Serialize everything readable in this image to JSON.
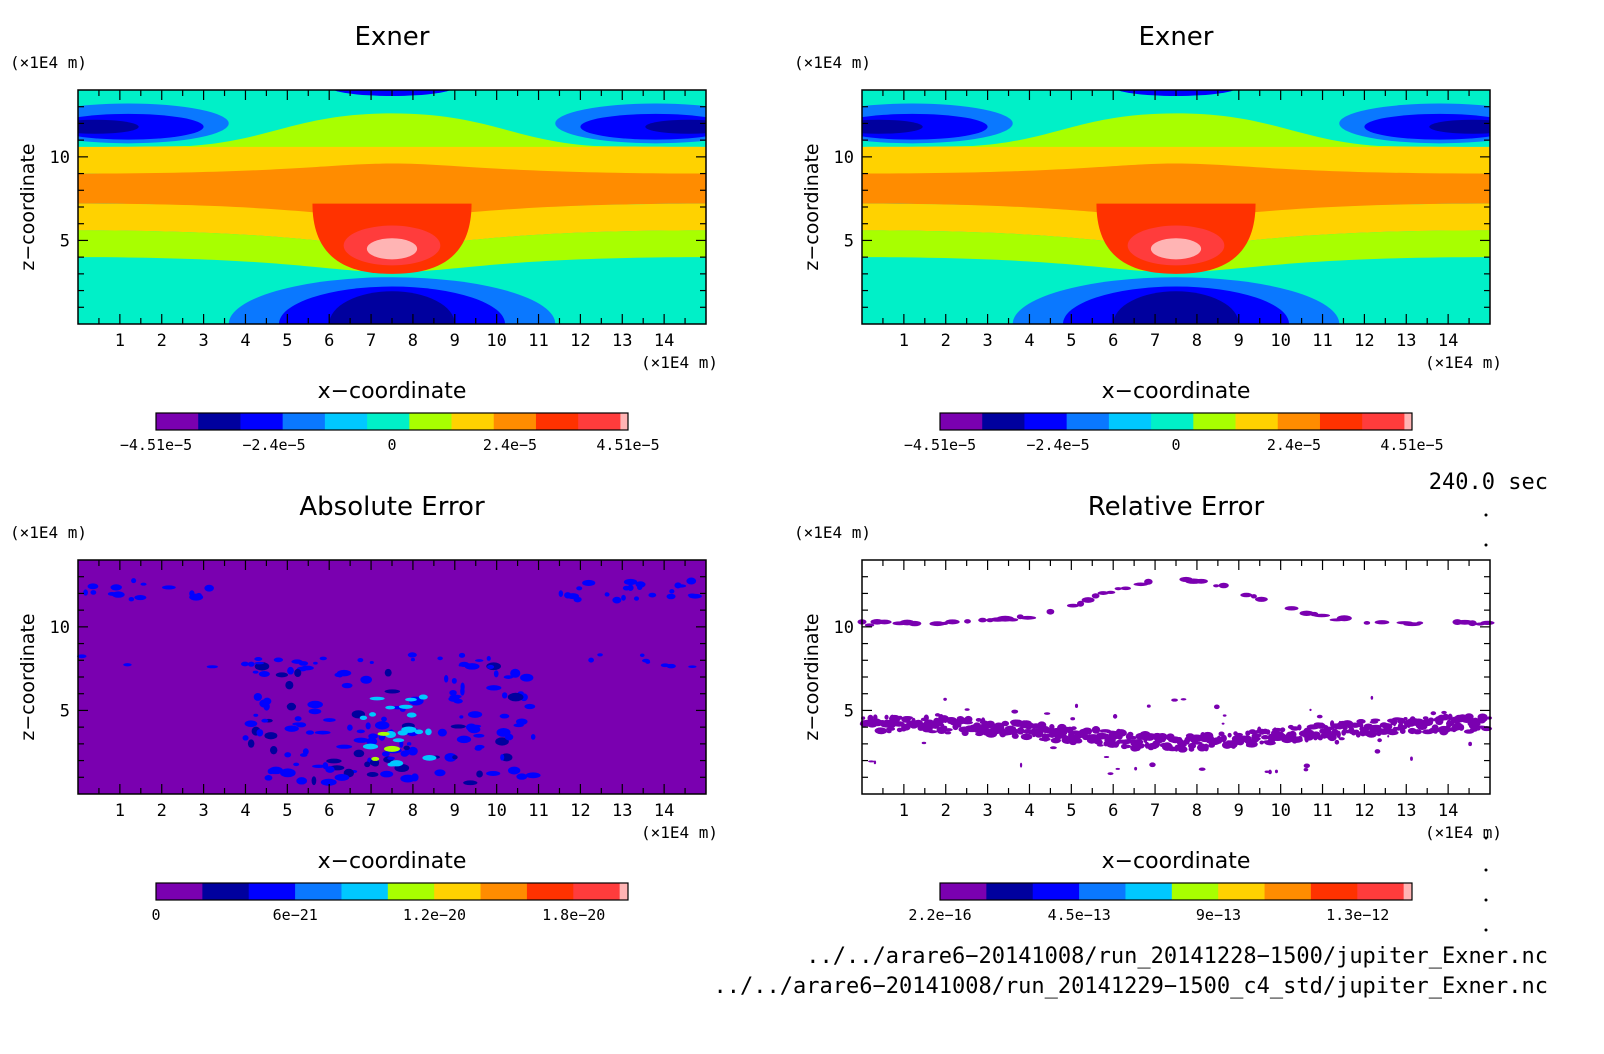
{
  "chart_data": [
    {
      "type": "heatmap",
      "title": "Exner",
      "xlabel": "x−coordinate",
      "ylabel": "z−coordinate",
      "x_unit": "(×1E4 m)",
      "y_unit": "(×1E4 m)",
      "xlim": [
        0,
        15
      ],
      "ylim": [
        0,
        14
      ],
      "x_ticks": [
        "1",
        "2",
        "3",
        "4",
        "5",
        "6",
        "7",
        "8",
        "9",
        "10",
        "11",
        "12",
        "13",
        "14"
      ],
      "y_ticks": [
        "5",
        "10"
      ],
      "colorbar": {
        "levels": 12,
        "range": [
          -4.51e-05,
          4.51e-05
        ],
        "tick_labels": [
          "−4.51e−5",
          "−2.4e−5",
          "0",
          "2.4e−5",
          "4.51e−5"
        ]
      },
      "field_description_values": {
        "max_center_x": 7.5,
        "max_center_z": 4.5,
        "max_value": 4.51e-05,
        "min_value": -4.51e-05
      }
    },
    {
      "type": "heatmap",
      "title": "Exner",
      "xlabel": "x−coordinate",
      "ylabel": "z−coordinate",
      "x_unit": "(×1E4 m)",
      "y_unit": "(×1E4 m)",
      "xlim": [
        0,
        15
      ],
      "ylim": [
        0,
        14
      ],
      "x_ticks": [
        "1",
        "2",
        "3",
        "4",
        "5",
        "6",
        "7",
        "8",
        "9",
        "10",
        "11",
        "12",
        "13",
        "14"
      ],
      "y_ticks": [
        "5",
        "10"
      ],
      "colorbar": {
        "levels": 12,
        "range": [
          -4.51e-05,
          4.51e-05
        ],
        "tick_labels": [
          "−4.51e−5",
          "−2.4e−5",
          "0",
          "2.4e−5",
          "4.51e−5"
        ]
      }
    },
    {
      "type": "heatmap",
      "title": "Absolute Error",
      "xlabel": "x−coordinate",
      "ylabel": "z−coordinate",
      "x_unit": "(×1E4 m)",
      "y_unit": "(×1E4 m)",
      "xlim": [
        0,
        15
      ],
      "ylim": [
        0,
        14
      ],
      "x_ticks": [
        "1",
        "2",
        "3",
        "4",
        "5",
        "6",
        "7",
        "8",
        "9",
        "10",
        "11",
        "12",
        "13",
        "14"
      ],
      "y_ticks": [
        "5",
        "10"
      ],
      "colorbar": {
        "levels": 11,
        "range": [
          0,
          2e-20
        ],
        "tick_labels": [
          "0",
          "6e−21",
          "1.2e−20",
          "1.8e−20"
        ]
      }
    },
    {
      "type": "heatmap",
      "title": "Relative Error",
      "xlabel": "x−coordinate",
      "ylabel": "z−coordinate",
      "x_unit": "(×1E4 m)",
      "y_unit": "(×1E4 m)",
      "xlim": [
        0,
        15
      ],
      "ylim": [
        0,
        14
      ],
      "x_ticks": [
        "1",
        "2",
        "3",
        "4",
        "5",
        "6",
        "7",
        "8",
        "9",
        "10",
        "11",
        "12",
        "13",
        "14"
      ],
      "y_ticks": [
        "5",
        "10"
      ],
      "colorbar": {
        "levels": 11,
        "range": [
          2.2e-16,
          1.5e-12
        ],
        "tick_labels": [
          "2.2e−16",
          "4.5e−13",
          "9e−13",
          "1.3e−12"
        ]
      }
    }
  ],
  "palette": [
    "#7a00b0",
    "#00009e",
    "#0000ff",
    "#0a78ff",
    "#00c8ff",
    "#00f0c8",
    "#a8ff00",
    "#ffd200",
    "#ff8c00",
    "#ff3200",
    "#ff3c3c",
    "#ffb4b4"
  ],
  "time_label": "240.0 sec",
  "source_files": [
    "../../arare6−20141008/run_20141228−1500/jupiter_Exner.nc",
    "../../arare6−20141008/run_20141229−1500_c4_std/jupiter_Exner.nc"
  ]
}
